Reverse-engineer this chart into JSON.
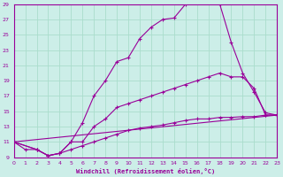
{
  "xlabel": "Windchill (Refroidissement éolien,°C)",
  "xlim": [
    0,
    23
  ],
  "ylim": [
    9,
    29
  ],
  "xticks": [
    0,
    1,
    2,
    3,
    4,
    5,
    6,
    7,
    8,
    9,
    10,
    11,
    12,
    13,
    14,
    15,
    16,
    17,
    18,
    19,
    20,
    21,
    22,
    23
  ],
  "yticks": [
    9,
    11,
    13,
    15,
    17,
    19,
    21,
    23,
    25,
    27,
    29
  ],
  "bg_color": "#cceee8",
  "line_color": "#990099",
  "grid_color": "#aaddcc",
  "line1_x": [
    0,
    1,
    2,
    3,
    4,
    5,
    6,
    7,
    8,
    9,
    10,
    11,
    12,
    13,
    14,
    15,
    16,
    17,
    18,
    19,
    20,
    21,
    22,
    23
  ],
  "line1_y": [
    11,
    10,
    10,
    9.2,
    9.5,
    11,
    13.5,
    17,
    19,
    21.5,
    22,
    24.5,
    26,
    27,
    27.2,
    29,
    29.2,
    29.2,
    29,
    24,
    20,
    17.5,
    14.8,
    14.5
  ],
  "line2_x": [
    0,
    2,
    3,
    4,
    5,
    6,
    7,
    8,
    9,
    10,
    11,
    12,
    13,
    14,
    15,
    16,
    17,
    18,
    19,
    20,
    21,
    22,
    23
  ],
  "line2_y": [
    11,
    10,
    9.2,
    9.5,
    11,
    11,
    13,
    14,
    15.5,
    16,
    16.5,
    17,
    17.5,
    18,
    18.5,
    19,
    19.5,
    20,
    19.5,
    19.5,
    18,
    14.5,
    14.5
  ],
  "line3_x": [
    0,
    2,
    3,
    4,
    5,
    6,
    7,
    8,
    9,
    10,
    11,
    12,
    13,
    14,
    15,
    16,
    17,
    18,
    19,
    20,
    21,
    22,
    23
  ],
  "line3_y": [
    11,
    10,
    9.2,
    9.5,
    10,
    10.5,
    11,
    11.5,
    12,
    12.5,
    12.8,
    13,
    13.2,
    13.5,
    13.8,
    14,
    14,
    14.2,
    14.2,
    14.3,
    14.3,
    14.5,
    14.5
  ],
  "line4_x": [
    0,
    23
  ],
  "line4_y": [
    11,
    14.5
  ]
}
